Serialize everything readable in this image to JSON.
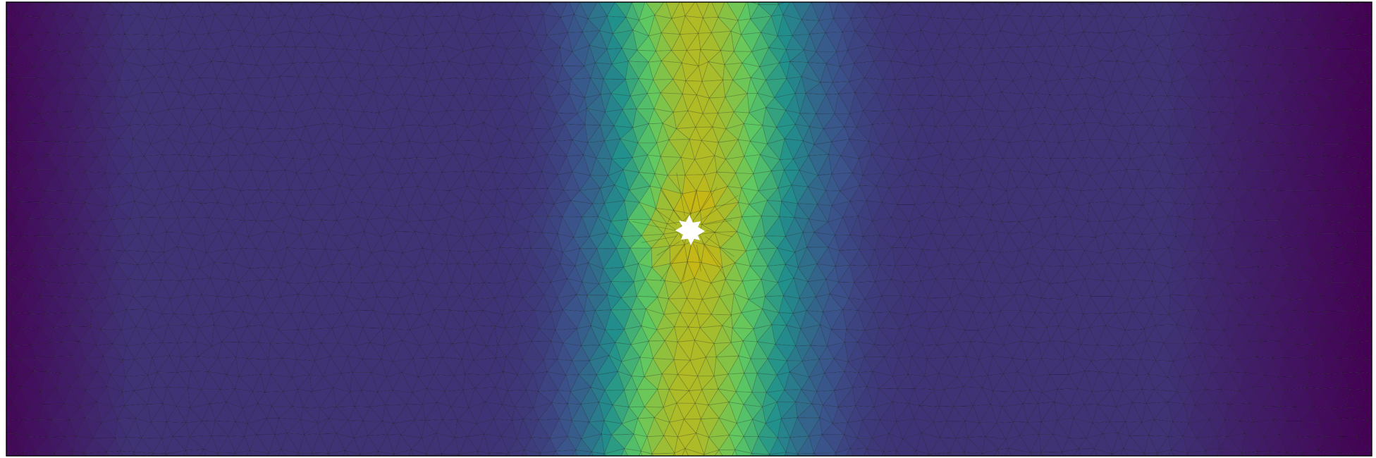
{
  "figure": {
    "kind": "triangulated-mesh-field",
    "colormap": "viridis",
    "colorbar_shown": false,
    "text_labels_shown": false,
    "background_color": "#ffffff",
    "frame_color": "#000000",
    "mesh_edge_color": "#000000",
    "hole_color": "#ffffff",
    "colormap_stops": [
      "#440154",
      "#3b528b",
      "#21918c",
      "#5ec962",
      "#c5b716"
    ],
    "field_profile": {
      "left_edge_level": 0.02,
      "low_plateau_level": 0.15,
      "peak_level": 0.95,
      "right_edge_level": 0.0
    }
  }
}
